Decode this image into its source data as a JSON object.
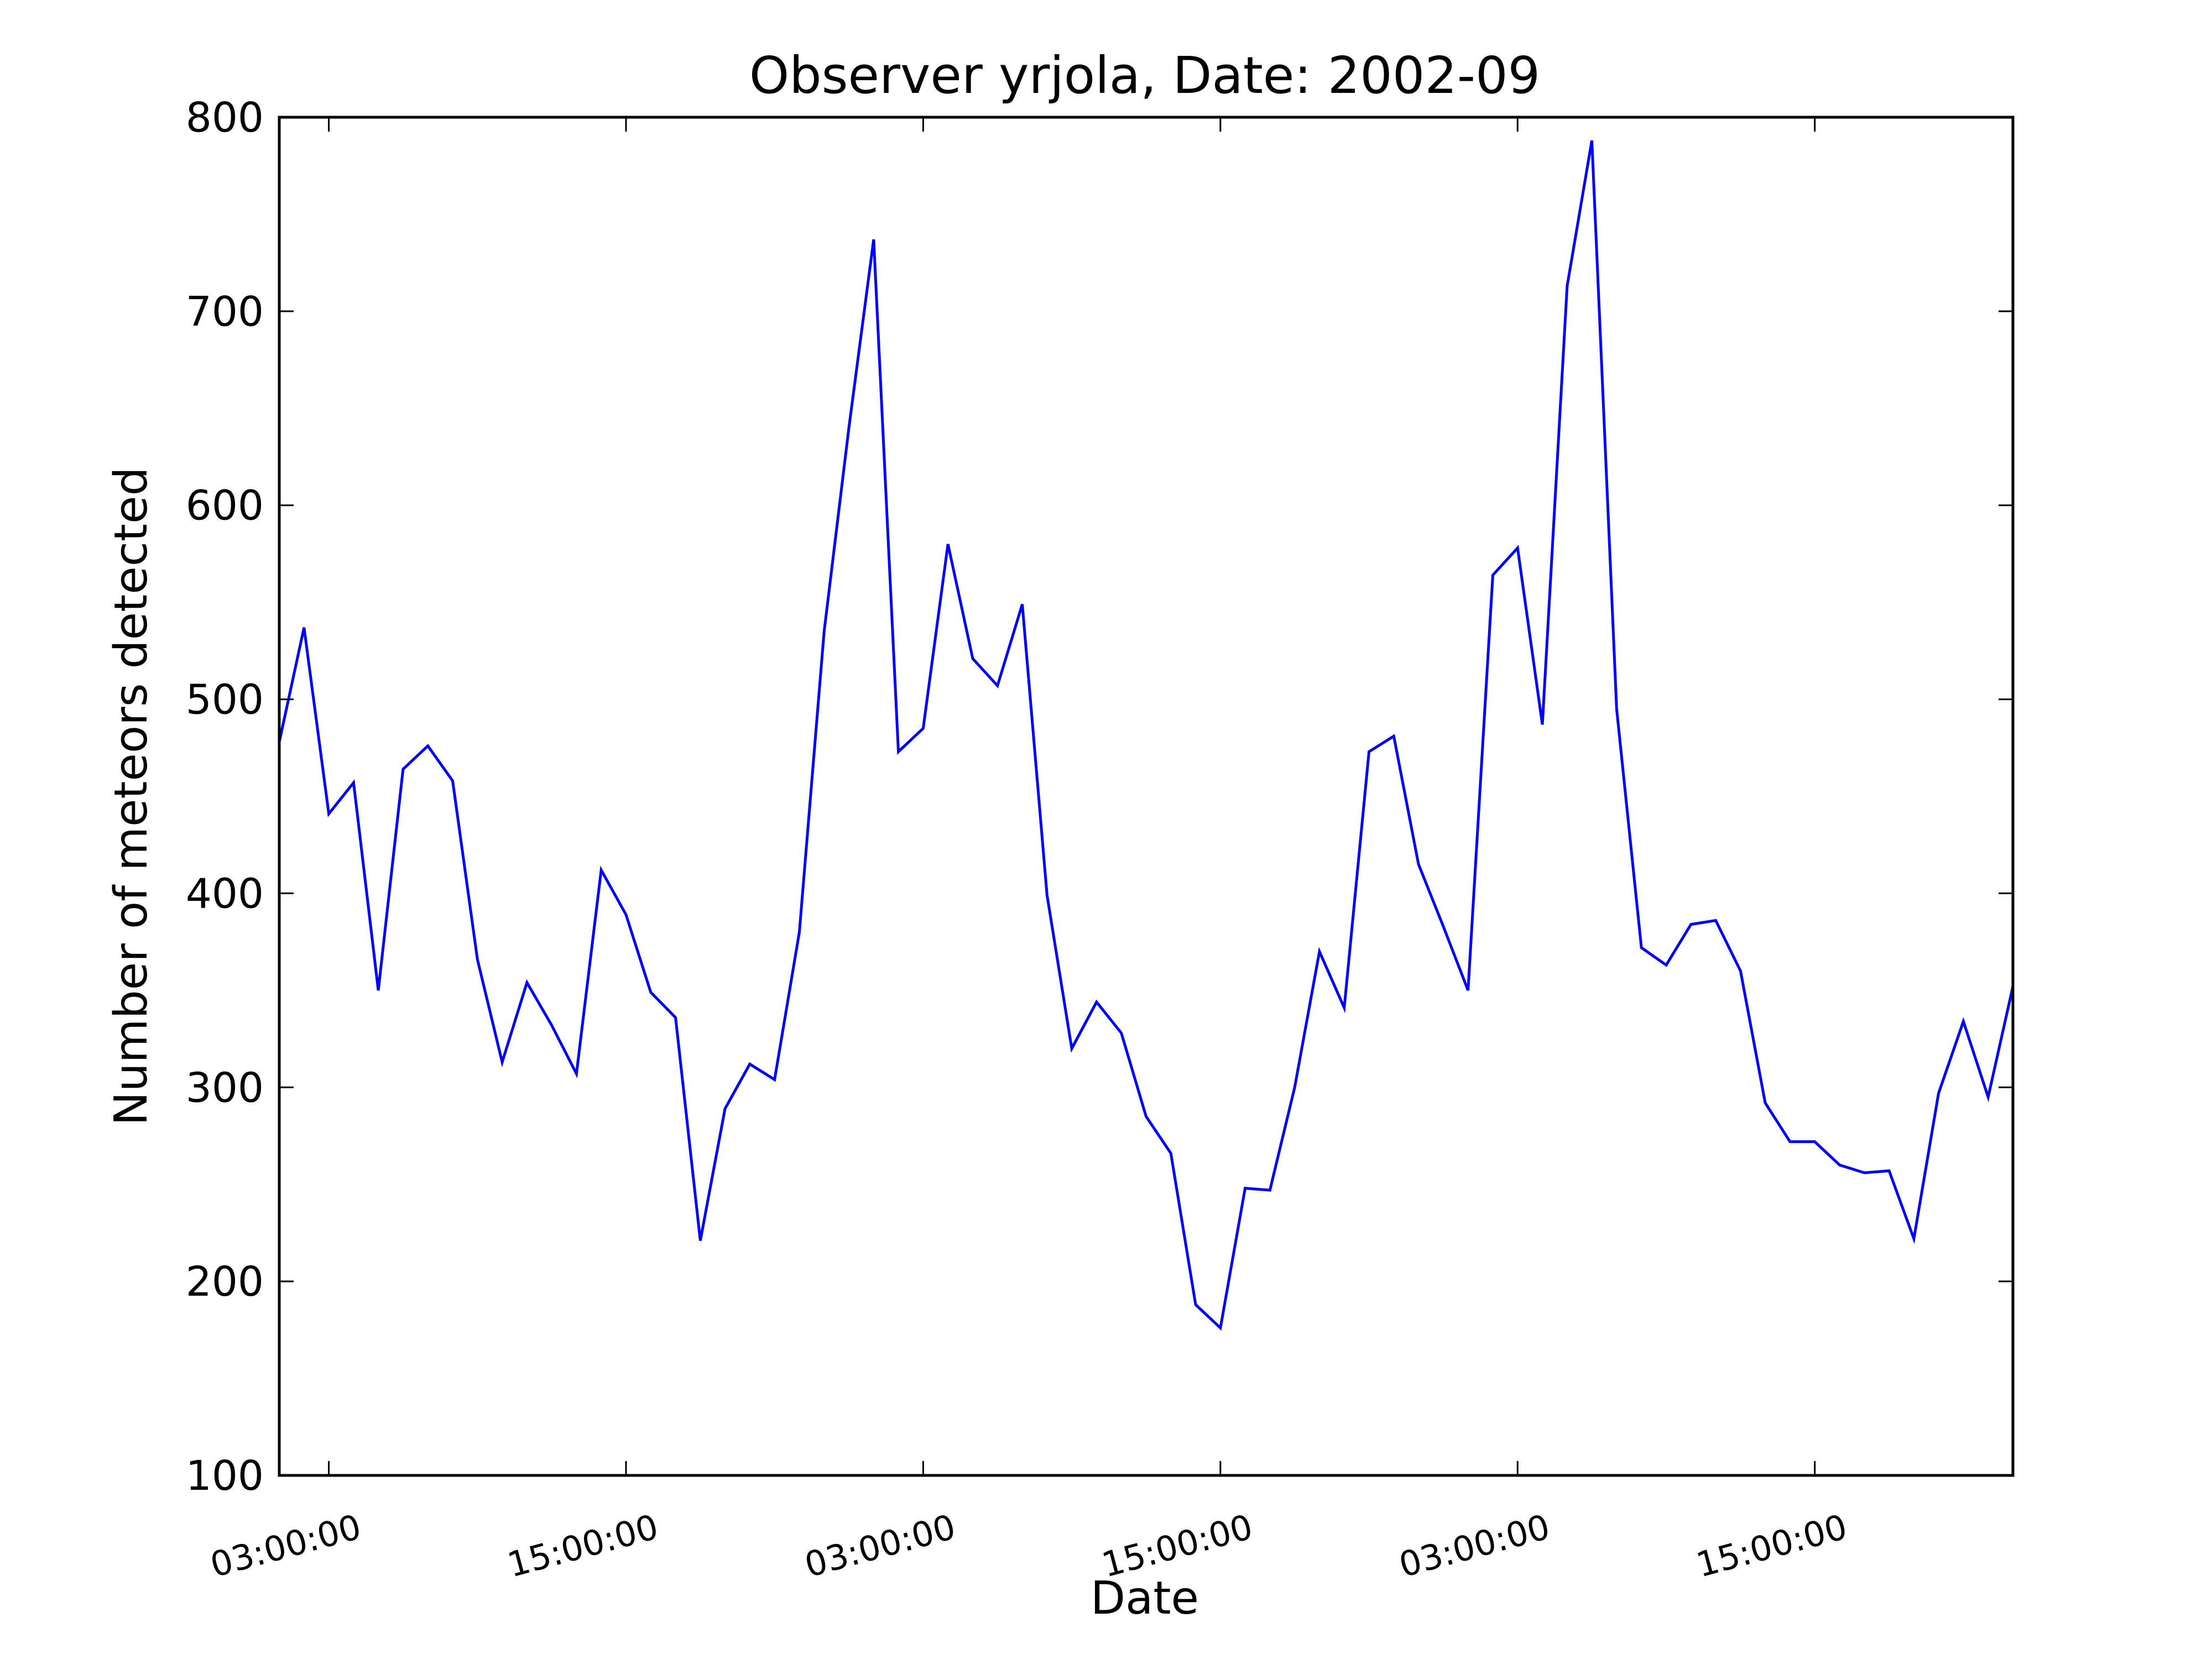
{
  "chart_data": {
    "type": "line",
    "title": "Observer yrjola, Date: 2002-09",
    "xlabel": "Date",
    "ylabel": "Number of meteors detected",
    "ylim": [
      100,
      800
    ],
    "yticks": [
      100,
      200,
      300,
      400,
      500,
      600,
      700,
      800
    ],
    "x_start_hour": 1,
    "x_end_hour": 71,
    "xticks": [
      {
        "hour": 3,
        "label": "03:00:00"
      },
      {
        "hour": 15,
        "label": "15:00:00"
      },
      {
        "hour": 27,
        "label": "03:00:00"
      },
      {
        "hour": 39,
        "label": "15:00:00"
      },
      {
        "hour": 51,
        "label": "03:00:00"
      },
      {
        "hour": 63,
        "label": "15:00:00"
      }
    ],
    "grid": false,
    "line_color": "#0000ff",
    "series": [
      {
        "x": [
          1,
          2,
          3,
          4,
          5,
          6,
          7,
          8,
          9,
          10,
          11,
          12,
          13,
          14,
          15,
          16,
          17,
          18,
          19,
          20,
          21,
          22,
          23,
          24,
          25,
          26,
          27,
          28,
          29,
          30,
          31,
          32,
          33,
          34,
          35,
          36,
          37,
          38,
          39,
          40,
          41,
          42,
          43,
          44,
          45,
          46,
          47,
          48,
          49,
          50,
          51,
          52,
          53,
          54,
          55,
          56,
          57,
          58,
          59,
          60,
          61,
          62,
          63,
          64,
          65,
          66,
          67,
          68,
          69,
          70,
          71
        ],
        "values": [
          478,
          537,
          441,
          457,
          350,
          464,
          476,
          458,
          366,
          313,
          354,
          332,
          307,
          412,
          389,
          349,
          336,
          221,
          289,
          312,
          304,
          380,
          535,
          640,
          737,
          473,
          485,
          580,
          521,
          507,
          549,
          399,
          320,
          344,
          328,
          285,
          266,
          188,
          176,
          248,
          247,
          300,
          370,
          341,
          473,
          481,
          415,
          383,
          350,
          564,
          578,
          487,
          713,
          788,
          495,
          372,
          363,
          384,
          386,
          360,
          292,
          272,
          272,
          260,
          256,
          257,
          222,
          297,
          334,
          295,
          352
        ]
      }
    ]
  }
}
